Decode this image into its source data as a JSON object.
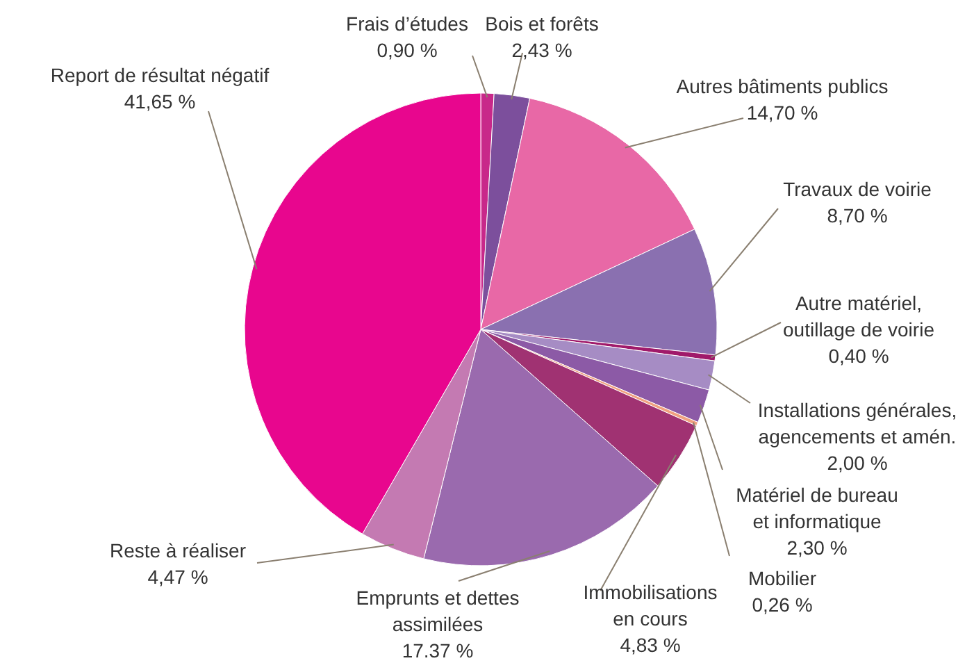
{
  "chart_data": {
    "type": "pie",
    "categories": [
      "Frais d’études",
      "Bois et forêts",
      "Autres bâtiments publics",
      "Travaux de voirie",
      "Autre matériel, outillage de voirie",
      "Installations générales, agencements et amén.",
      "Matériel de bureau et informatique",
      "Mobilier",
      "Immobilisations en cours",
      "Emprunts et dettes assimilées",
      "Reste à réaliser",
      "Report de résultat négatif"
    ],
    "values": [
      0.9,
      2.43,
      14.7,
      8.7,
      0.4,
      2.0,
      2.3,
      0.26,
      4.83,
      17.37,
      4.47,
      41.65
    ],
    "value_labels": [
      "0,90 %",
      "2,43 %",
      "14,70 %",
      "8,70 %",
      "0,40 %",
      "2,00 %",
      "2,30 %",
      "0,26 %",
      "4,83 %",
      "17.37 %",
      "4,47 %",
      "41,65 %"
    ],
    "colors": [
      "#c8288a",
      "#7c4f9c",
      "#e868a6",
      "#8a70b0",
      "#a01a6a",
      "#a68cc4",
      "#8c5aa6",
      "#f0a080",
      "#a03272",
      "#9a6aae",
      "#c47ab2",
      "#e8068e"
    ]
  }
}
